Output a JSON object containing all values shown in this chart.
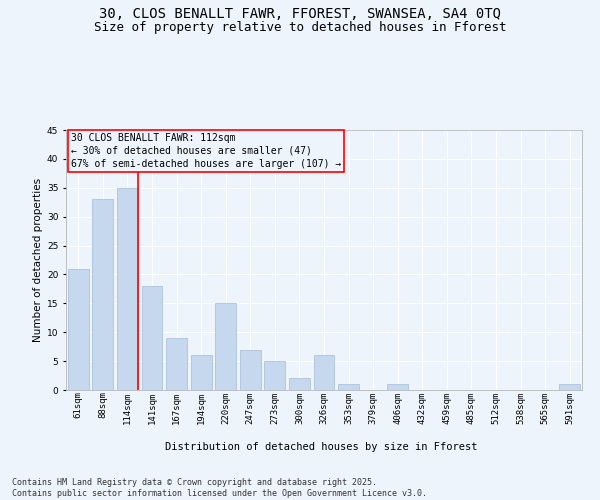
{
  "title_line1": "30, CLOS BENALLT FAWR, FFOREST, SWANSEA, SA4 0TQ",
  "title_line2": "Size of property relative to detached houses in Fforest",
  "categories": [
    "61sqm",
    "88sqm",
    "114sqm",
    "141sqm",
    "167sqm",
    "194sqm",
    "220sqm",
    "247sqm",
    "273sqm",
    "300sqm",
    "326sqm",
    "353sqm",
    "379sqm",
    "406sqm",
    "432sqm",
    "459sqm",
    "485sqm",
    "512sqm",
    "538sqm",
    "565sqm",
    "591sqm"
  ],
  "values": [
    21,
    33,
    35,
    18,
    9,
    6,
    15,
    7,
    5,
    2,
    6,
    1,
    0,
    1,
    0,
    0,
    0,
    0,
    0,
    0,
    1
  ],
  "bar_color": "#c5d8ed",
  "bar_edgecolor": "#a0bcd8",
  "property_line_index": 2,
  "property_line_color": "red",
  "ylabel": "Number of detached properties",
  "xlabel": "Distribution of detached houses by size in Fforest",
  "ylim": [
    0,
    45
  ],
  "yticks": [
    0,
    5,
    10,
    15,
    20,
    25,
    30,
    35,
    40,
    45
  ],
  "annotation_text": "30 CLOS BENALLT FAWR: 112sqm\n← 30% of detached houses are smaller (47)\n67% of semi-detached houses are larger (107) →",
  "annotation_box_color": "red",
  "footer_line1": "Contains HM Land Registry data © Crown copyright and database right 2025.",
  "footer_line2": "Contains public sector information licensed under the Open Government Licence v3.0.",
  "background_color": "#eef4fb",
  "grid_color": "#ffffff",
  "title_fontsize": 10,
  "subtitle_fontsize": 9,
  "axis_label_fontsize": 7.5,
  "tick_fontsize": 6.5,
  "annotation_fontsize": 7,
  "footer_fontsize": 6
}
